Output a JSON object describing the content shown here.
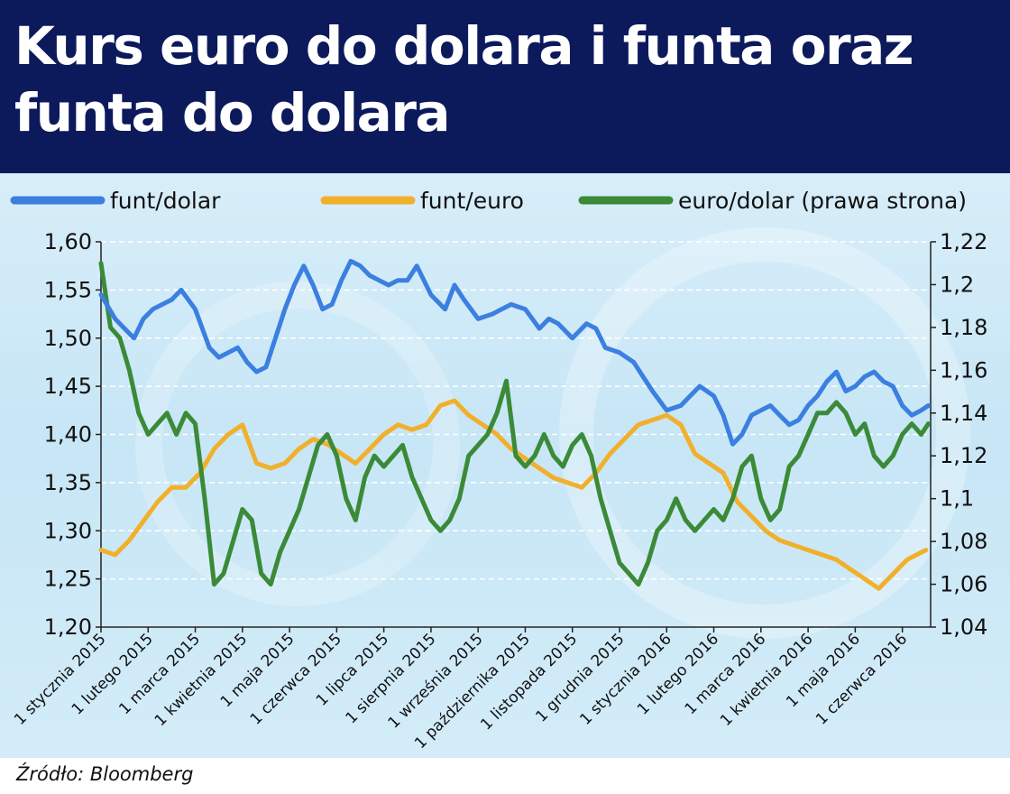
{
  "header": {
    "title": "Kurs euro do dolara i funta oraz funta do dolara"
  },
  "source": "Źródło: Bloomberg",
  "chart_data": {
    "type": "line",
    "grid": true,
    "legend_position": "top",
    "x_labels": [
      "1 stycznia 2015",
      "1 lutego 2015",
      "1 marca 2015",
      "1 kwietnia 2015",
      "1 maja 2015",
      "1 czerwca 2015",
      "1 lipca 2015",
      "1 sierpnia 2015",
      "1 września 2015",
      "1 października 2015",
      "1 listopada 2015",
      "1 grudnia 2015",
      "1 stycznia 2016",
      "1 lutego 2016",
      "1 marca 2016",
      "1 kwietnia 2016",
      "1 maja 2016",
      "1 czerwca 2016"
    ],
    "x_range": [
      0,
      17.6
    ],
    "y_left": {
      "range": [
        1.2,
        1.6
      ],
      "ticks": [
        "1,60",
        "1,55",
        "1,50",
        "1,45",
        "1,40",
        "1,35",
        "1,30",
        "1,25",
        "1,20"
      ],
      "tick_values": [
        1.6,
        1.55,
        1.5,
        1.45,
        1.4,
        1.35,
        1.3,
        1.25,
        1.2
      ]
    },
    "y_right": {
      "range": [
        1.04,
        1.22
      ],
      "ticks": [
        "1,22",
        "1,2",
        "1,18",
        "1,16",
        "1,14",
        "1,12",
        "1,1",
        "1,08",
        "1,06",
        "1,04"
      ],
      "tick_values": [
        1.22,
        1.2,
        1.18,
        1.16,
        1.14,
        1.12,
        1.1,
        1.08,
        1.06,
        1.04
      ]
    },
    "series": [
      {
        "name": "funt/dolar",
        "axis": "left",
        "color": "#3b7fe0",
        "x": [
          0,
          0.3,
          0.5,
          0.7,
          0.9,
          1.1,
          1.3,
          1.5,
          1.7,
          2.0,
          2.3,
          2.5,
          2.7,
          2.9,
          3.1,
          3.3,
          3.5,
          3.7,
          3.9,
          4.1,
          4.3,
          4.5,
          4.7,
          4.9,
          5.1,
          5.3,
          5.5,
          5.7,
          5.9,
          6.1,
          6.3,
          6.5,
          6.7,
          7.0,
          7.3,
          7.5,
          7.7,
          8.0,
          8.3,
          8.5,
          8.7,
          9.0,
          9.3,
          9.5,
          9.7,
          10.0,
          10.3,
          10.5,
          10.7,
          11.0,
          11.3,
          11.5,
          11.7,
          12.0,
          12.3,
          12.5,
          12.7,
          13.0,
          13.2,
          13.4,
          13.6,
          13.8,
          14.0,
          14.2,
          14.4,
          14.6,
          14.8,
          15.0,
          15.2,
          15.4,
          15.6,
          15.8,
          16.0,
          16.2,
          16.4,
          16.6,
          16.8,
          17.0,
          17.2,
          17.4,
          17.55
        ],
        "y": [
          1.545,
          1.52,
          1.51,
          1.5,
          1.52,
          1.53,
          1.535,
          1.54,
          1.55,
          1.53,
          1.49,
          1.48,
          1.485,
          1.49,
          1.475,
          1.465,
          1.47,
          1.5,
          1.53,
          1.555,
          1.575,
          1.555,
          1.53,
          1.535,
          1.56,
          1.58,
          1.575,
          1.565,
          1.56,
          1.555,
          1.56,
          1.56,
          1.575,
          1.545,
          1.53,
          1.555,
          1.54,
          1.52,
          1.525,
          1.53,
          1.535,
          1.53,
          1.51,
          1.52,
          1.515,
          1.5,
          1.515,
          1.51,
          1.49,
          1.485,
          1.475,
          1.46,
          1.445,
          1.425,
          1.43,
          1.44,
          1.45,
          1.44,
          1.42,
          1.39,
          1.4,
          1.42,
          1.425,
          1.43,
          1.42,
          1.41,
          1.415,
          1.43,
          1.44,
          1.455,
          1.465,
          1.445,
          1.45,
          1.46,
          1.465,
          1.455,
          1.45,
          1.43,
          1.42,
          1.425,
          1.43
        ]
      },
      {
        "name": "funt/euro",
        "axis": "left",
        "color": "#f1b02c",
        "x": [
          0,
          0.3,
          0.6,
          0.9,
          1.2,
          1.5,
          1.8,
          2.1,
          2.4,
          2.7,
          3.0,
          3.3,
          3.6,
          3.9,
          4.2,
          4.5,
          4.8,
          5.1,
          5.4,
          5.7,
          6.0,
          6.3,
          6.6,
          6.9,
          7.2,
          7.5,
          7.8,
          8.1,
          8.4,
          8.7,
          9.0,
          9.3,
          9.6,
          9.9,
          10.2,
          10.5,
          10.8,
          11.1,
          11.4,
          11.7,
          12.0,
          12.3,
          12.6,
          12.9,
          13.2,
          13.5,
          13.8,
          14.1,
          14.4,
          14.7,
          15.0,
          15.3,
          15.6,
          15.9,
          16.2,
          16.5,
          16.8,
          17.1,
          17.3,
          17.5
        ],
        "y": [
          1.28,
          1.275,
          1.29,
          1.31,
          1.33,
          1.345,
          1.345,
          1.36,
          1.385,
          1.4,
          1.41,
          1.37,
          1.365,
          1.37,
          1.385,
          1.395,
          1.39,
          1.38,
          1.37,
          1.385,
          1.4,
          1.41,
          1.405,
          1.41,
          1.43,
          1.435,
          1.42,
          1.41,
          1.4,
          1.385,
          1.375,
          1.365,
          1.355,
          1.35,
          1.345,
          1.36,
          1.38,
          1.395,
          1.41,
          1.415,
          1.42,
          1.41,
          1.38,
          1.37,
          1.36,
          1.33,
          1.315,
          1.3,
          1.29,
          1.285,
          1.28,
          1.275,
          1.27,
          1.26,
          1.25,
          1.24,
          1.255,
          1.27,
          1.275,
          1.28
        ]
      },
      {
        "name": "euro/dolar (prawa strona)",
        "axis": "right",
        "color": "#3b8a38",
        "x": [
          0,
          0.2,
          0.4,
          0.6,
          0.8,
          1.0,
          1.2,
          1.4,
          1.6,
          1.8,
          2.0,
          2.2,
          2.4,
          2.6,
          2.8,
          3.0,
          3.2,
          3.4,
          3.6,
          3.8,
          4.0,
          4.2,
          4.4,
          4.6,
          4.8,
          5.0,
          5.2,
          5.4,
          5.6,
          5.8,
          6.0,
          6.2,
          6.4,
          6.6,
          6.8,
          7.0,
          7.2,
          7.4,
          7.6,
          7.8,
          8.0,
          8.2,
          8.4,
          8.6,
          8.8,
          9.0,
          9.2,
          9.4,
          9.6,
          9.8,
          10.0,
          10.2,
          10.4,
          10.6,
          10.8,
          11.0,
          11.2,
          11.4,
          11.6,
          11.8,
          12.0,
          12.2,
          12.4,
          12.6,
          12.8,
          13.0,
          13.2,
          13.4,
          13.6,
          13.8,
          14.0,
          14.2,
          14.4,
          14.6,
          14.8,
          15.0,
          15.2,
          15.4,
          15.6,
          15.8,
          16.0,
          16.2,
          16.4,
          16.6,
          16.8,
          17.0,
          17.2,
          17.4,
          17.55
        ],
        "y": [
          1.21,
          1.18,
          1.175,
          1.16,
          1.14,
          1.13,
          1.135,
          1.14,
          1.13,
          1.14,
          1.135,
          1.1,
          1.06,
          1.065,
          1.08,
          1.095,
          1.09,
          1.065,
          1.06,
          1.075,
          1.085,
          1.095,
          1.11,
          1.125,
          1.13,
          1.12,
          1.1,
          1.09,
          1.11,
          1.12,
          1.115,
          1.12,
          1.125,
          1.11,
          1.1,
          1.09,
          1.085,
          1.09,
          1.1,
          1.12,
          1.125,
          1.13,
          1.14,
          1.155,
          1.12,
          1.115,
          1.12,
          1.13,
          1.12,
          1.115,
          1.125,
          1.13,
          1.12,
          1.1,
          1.085,
          1.07,
          1.065,
          1.06,
          1.07,
          1.085,
          1.09,
          1.1,
          1.09,
          1.085,
          1.09,
          1.095,
          1.09,
          1.1,
          1.115,
          1.12,
          1.1,
          1.09,
          1.095,
          1.115,
          1.12,
          1.13,
          1.14,
          1.14,
          1.145,
          1.14,
          1.13,
          1.135,
          1.12,
          1.115,
          1.12,
          1.13,
          1.135,
          1.13,
          1.135
        ]
      }
    ]
  }
}
